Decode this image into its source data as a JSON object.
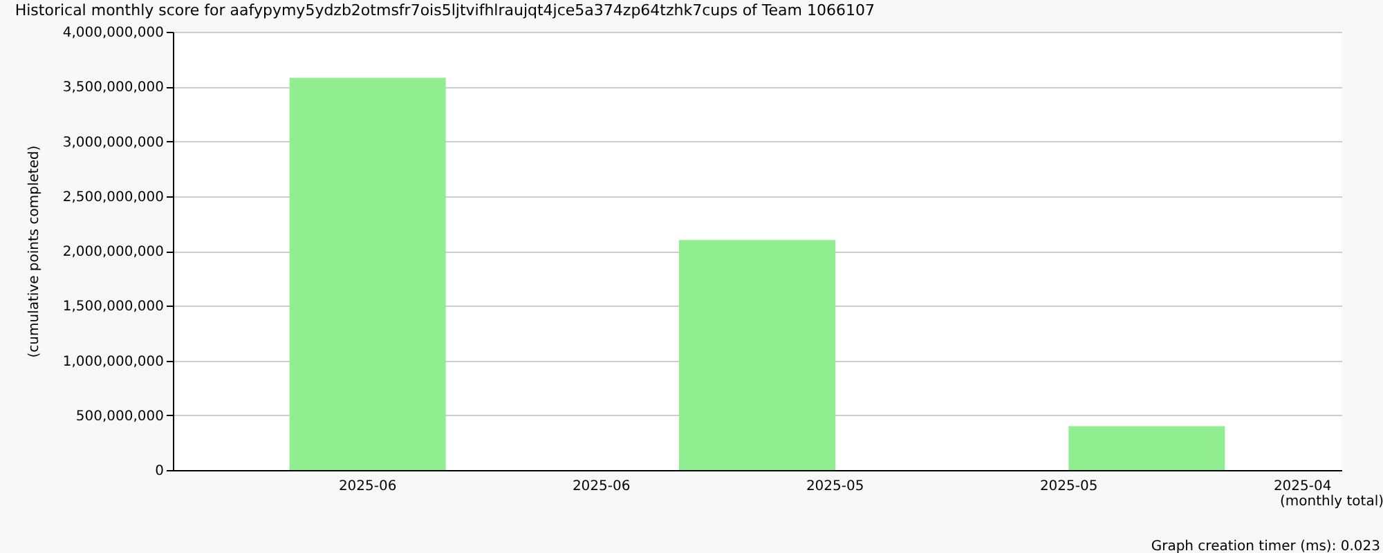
{
  "chart_data": {
    "type": "bar",
    "title": "Historical monthly score for aafypymy5ydzb2otmsfr7ois5ljtvifhlraujqt4jce5a374zp64tzhk7cups of Team 1066107",
    "categories": [
      null,
      null,
      "2025-06",
      null,
      null,
      "2025-06",
      null,
      null,
      "2025-05",
      null,
      null,
      "2025-05",
      null,
      null,
      "2025-04"
    ],
    "values": [
      null,
      null,
      3580000000,
      null,
      null,
      null,
      null,
      2100000000,
      null,
      null,
      null,
      null,
      400000000,
      null,
      null
    ],
    "color": "#90ee90",
    "ylim": [
      0,
      4000000000
    ],
    "yticks": [
      0,
      {
        "value": 500000000,
        "label": "500,000,000"
      },
      {
        "value": 1000000000,
        "label": "1,000,000,000"
      },
      {
        "value": 1500000000,
        "label": "1,500,000,000"
      },
      {
        "value": 2000000000,
        "label": "2,000,000,000"
      },
      {
        "value": 2500000000,
        "label": "2,500,000,000"
      },
      {
        "value": 3000000000,
        "label": "3,000,000,000"
      },
      {
        "value": 3500000000,
        "label": "3,500,000,000"
      },
      {
        "value": 4000000000,
        "label": "4,000,000,000"
      }
    ],
    "xlabel": "(monthly total)",
    "ylabel": "(cumulative points completed)",
    "grid": "y",
    "annotations": [
      "Graph creation timer (ms): 0.023"
    ]
  }
}
